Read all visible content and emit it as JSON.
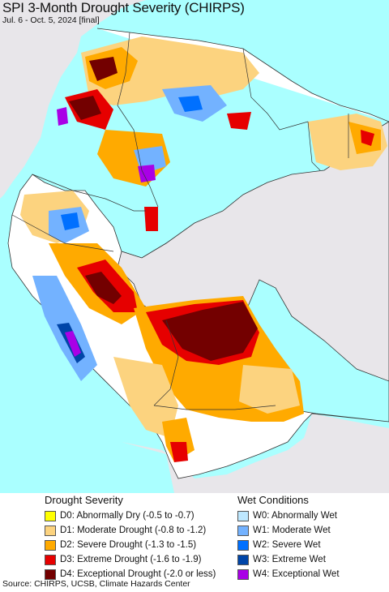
{
  "header": {
    "title": "SPI 3-Month Drought Severity (CHIRPS)",
    "subtitle": "Jul. 6 - Oct. 5, 2024 [final]"
  },
  "legend": {
    "drought_heading": "Drought Severity",
    "drought_items": [
      {
        "label": "D0: Abnormally Dry (-0.5 to -0.7)",
        "color": "#ffff00"
      },
      {
        "label": "D1: Moderate Drought (-0.8 to -1.2)",
        "color": "#fcd37f"
      },
      {
        "label": "D2: Severe Drought (-1.3 to -1.5)",
        "color": "#ffaa00"
      },
      {
        "label": "D3: Extreme Drought (-1.6 to -1.9)",
        "color": "#e60000"
      },
      {
        "label": "D4: Exceptional Drought (-2.0 or less)",
        "color": "#730000"
      }
    ],
    "wet_heading": "Wet Conditions",
    "wet_items": [
      {
        "label": "W0: Abnormally Wet",
        "color": "#bee8ff"
      },
      {
        "label": "W1: Moderate Wet",
        "color": "#73b2ff"
      },
      {
        "label": "W2: Severe Wet",
        "color": "#0070ff"
      },
      {
        "label": "W3: Extreme Wet",
        "color": "#0045a8"
      },
      {
        "label": "W4: Exceptional Wet",
        "color": "#a900e6"
      }
    ]
  },
  "footer": {
    "source": "Source: CHIRPS, UCSB, Climate Hazards Center"
  },
  "map": {
    "ocean_color": "#aaffff",
    "outside_land_color": "#e8e6ea",
    "land_color": "#ffffff",
    "border_color": "#333333"
  }
}
